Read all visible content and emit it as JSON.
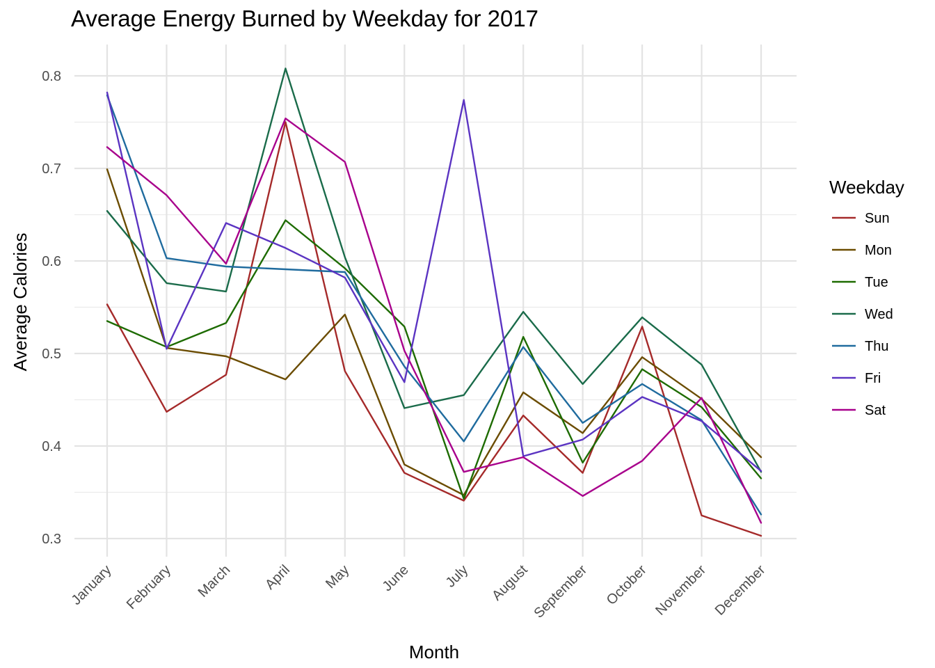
{
  "chart_data": {
    "type": "line",
    "title": "Average Energy Burned by Weekday for 2017",
    "xlabel": "Month",
    "ylabel": "Average Calories",
    "categories": [
      "January",
      "February",
      "March",
      "April",
      "May",
      "June",
      "July",
      "August",
      "September",
      "October",
      "November",
      "December"
    ],
    "ylim": [
      0.3,
      0.8
    ],
    "yticks": [
      "0.3",
      "0.4",
      "0.5",
      "0.6",
      "0.7",
      "0.8"
    ],
    "grid": true,
    "legend_title": "Weekday",
    "legend_position": "right",
    "series": [
      {
        "name": "Sun",
        "color": "#a52a2a",
        "values": [
          0.553,
          0.437,
          0.477,
          0.75,
          0.481,
          0.371,
          0.341,
          0.433,
          0.371,
          0.529,
          0.325,
          0.303
        ]
      },
      {
        "name": "Mon",
        "color": "#6b4c00",
        "values": [
          0.699,
          0.506,
          0.497,
          0.472,
          0.542,
          0.38,
          0.347,
          0.458,
          0.414,
          0.496,
          0.451,
          0.388
        ]
      },
      {
        "name": "Tue",
        "color": "#1d6b00",
        "values": [
          0.535,
          0.507,
          0.533,
          0.644,
          0.592,
          0.529,
          0.343,
          0.518,
          0.382,
          0.483,
          0.442,
          0.365
        ]
      },
      {
        "name": "Wed",
        "color": "#1a6b4a",
        "values": [
          0.654,
          0.576,
          0.567,
          0.808,
          0.604,
          0.441,
          0.455,
          0.545,
          0.467,
          0.539,
          0.488,
          0.372
        ]
      },
      {
        "name": "Thu",
        "color": "#1f6b9e",
        "values": [
          0.779,
          0.603,
          0.594,
          0.591,
          0.588,
          0.486,
          0.405,
          0.507,
          0.425,
          0.467,
          0.428,
          0.326
        ]
      },
      {
        "name": "Fri",
        "color": "#5b34c2",
        "values": [
          0.782,
          0.505,
          0.641,
          0.614,
          0.582,
          0.469,
          0.774,
          0.389,
          0.407,
          0.453,
          0.427,
          0.373
        ]
      },
      {
        "name": "Sat",
        "color": "#a8008c",
        "values": [
          0.723,
          0.671,
          0.597,
          0.754,
          0.707,
          0.503,
          0.372,
          0.388,
          0.346,
          0.384,
          0.452,
          0.317
        ]
      }
    ]
  }
}
